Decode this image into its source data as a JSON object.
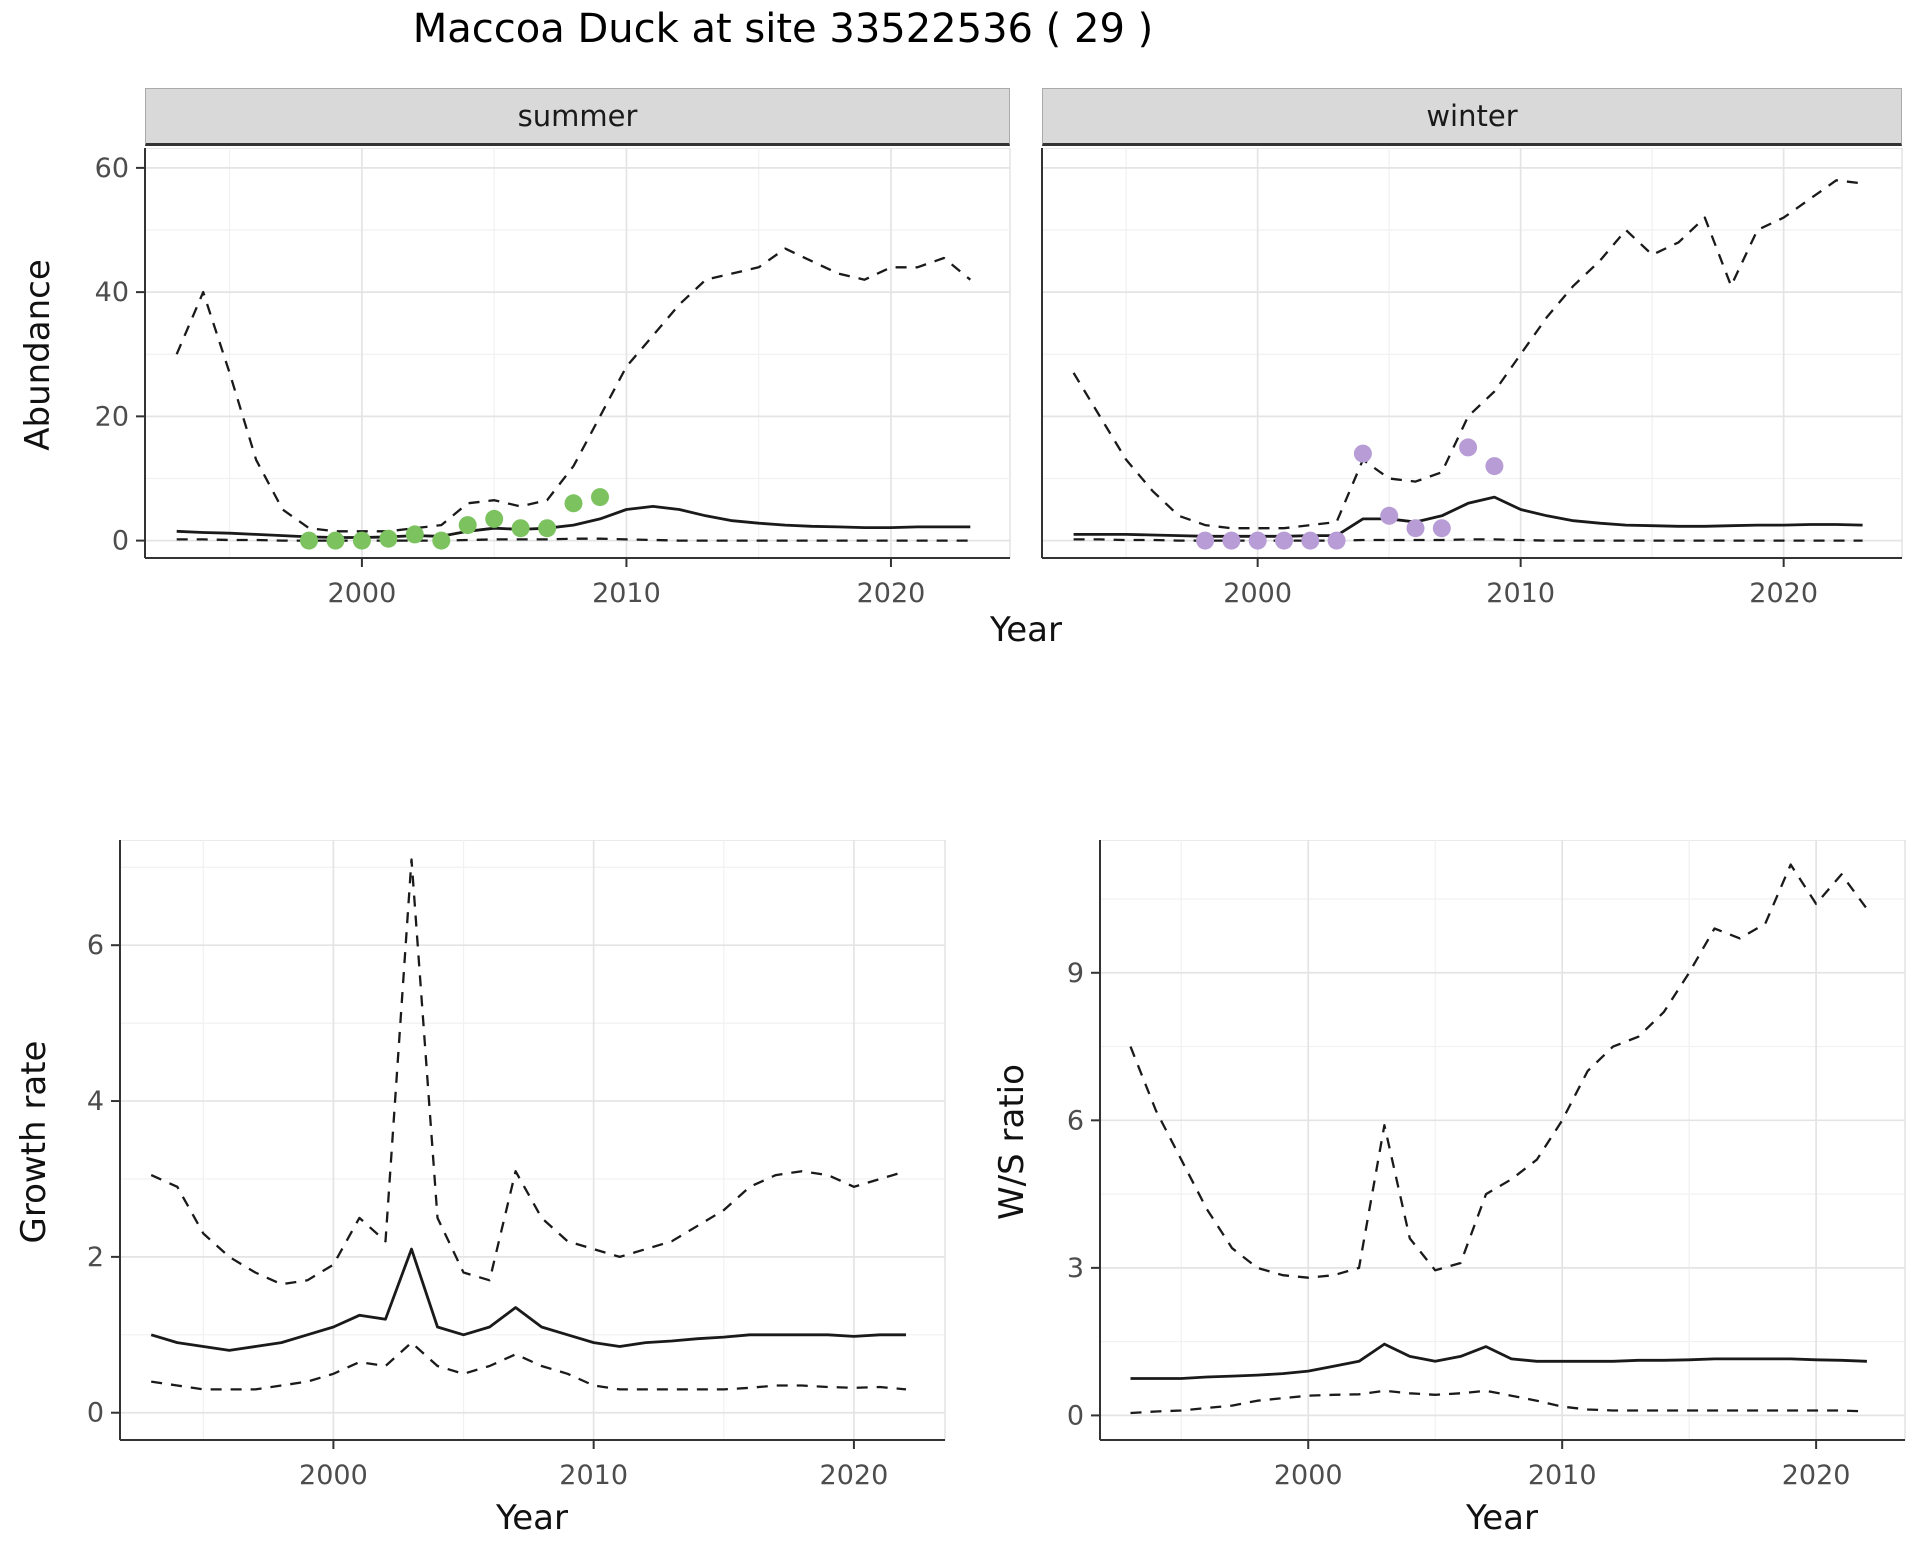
{
  "figure": {
    "title": "Maccoa Duck at site 33522536 ( 29 )"
  },
  "chart_data": [
    {
      "id": "abundance-summer",
      "type": "line",
      "facet_label": "summer",
      "xlabel": "Year",
      "ylabel": "Abundance",
      "xlim": [
        1991.8,
        2024.5
      ],
      "ylim": [
        -2.8,
        63.2
      ],
      "xticks": [
        2000,
        2010,
        2020
      ],
      "yticks": [
        0,
        20,
        40,
        60
      ],
      "grid": true,
      "legend": "none",
      "x": [
        1993,
        1994,
        1995,
        1996,
        1997,
        1998,
        1999,
        2000,
        2001,
        2002,
        2003,
        2004,
        2005,
        2006,
        2007,
        2008,
        2009,
        2010,
        2011,
        2012,
        2013,
        2014,
        2015,
        2016,
        2017,
        2018,
        2019,
        2020,
        2021,
        2022,
        2023
      ],
      "series": [
        {
          "name": "upper-credible-bound",
          "style": "dashed",
          "values": [
            30,
            40,
            27,
            13,
            5,
            2,
            1.5,
            1.5,
            1.5,
            2,
            2.5,
            6,
            6.5,
            5.5,
            6.5,
            12,
            20,
            28,
            33,
            38,
            42,
            43,
            44,
            47,
            45,
            43,
            42,
            44,
            44,
            45.5,
            42
          ]
        },
        {
          "name": "median-estimate",
          "style": "solid",
          "values": [
            1.5,
            1.3,
            1.2,
            1,
            0.8,
            0.6,
            0.5,
            0.5,
            0.6,
            0.8,
            0.7,
            1.5,
            2,
            1.8,
            2,
            2.5,
            3.5,
            5,
            5.5,
            5,
            4,
            3.2,
            2.8,
            2.5,
            2.3,
            2.2,
            2.1,
            2.1,
            2.2,
            2.2,
            2.2
          ]
        },
        {
          "name": "lower-credible-bound",
          "style": "dashed",
          "values": [
            0.2,
            0.2,
            0.1,
            0.1,
            0,
            0,
            0,
            0,
            0,
            0,
            0,
            0.1,
            0.2,
            0.2,
            0.2,
            0.3,
            0.3,
            0.2,
            0.1,
            0,
            0,
            0,
            0,
            0,
            0,
            0,
            0,
            0,
            0,
            0,
            0
          ]
        }
      ],
      "points": {
        "name": "summer-observed-count",
        "color": "#7cc360",
        "x": [
          1998,
          1999,
          2000,
          2001,
          2002,
          2003,
          2004,
          2005,
          2006,
          2007,
          2008,
          2009
        ],
        "y": [
          0,
          0,
          0,
          0.3,
          1,
          0,
          2.5,
          3.5,
          2,
          2,
          6,
          7
        ]
      }
    },
    {
      "id": "abundance-winter",
      "type": "line",
      "facet_label": "winter",
      "xlabel": "Year",
      "ylabel": "Abundance",
      "xlim": [
        1991.8,
        2024.5
      ],
      "ylim": [
        -2.8,
        63.2
      ],
      "xticks": [
        2000,
        2010,
        2020
      ],
      "yticks": [
        0,
        20,
        40,
        60
      ],
      "grid": true,
      "legend": "none",
      "x": [
        1993,
        1994,
        1995,
        1996,
        1997,
        1998,
        1999,
        2000,
        2001,
        2002,
        2003,
        2004,
        2005,
        2006,
        2007,
        2008,
        2009,
        2010,
        2011,
        2012,
        2013,
        2014,
        2015,
        2016,
        2017,
        2018,
        2019,
        2020,
        2021,
        2022,
        2023
      ],
      "series": [
        {
          "name": "upper-credible-bound",
          "style": "dashed",
          "values": [
            27,
            20,
            13,
            8,
            4,
            2.5,
            2,
            2,
            2,
            2.5,
            3,
            13,
            10,
            9.5,
            11,
            20,
            24,
            30,
            36,
            41,
            45,
            50,
            46,
            48,
            52,
            41,
            50,
            52,
            55,
            58,
            57.5
          ]
        },
        {
          "name": "median-estimate",
          "style": "solid",
          "values": [
            1,
            1,
            1,
            0.9,
            0.8,
            0.7,
            0.7,
            0.7,
            0.7,
            0.8,
            0.8,
            3.5,
            3.5,
            3,
            4,
            6,
            7,
            5,
            4,
            3.2,
            2.8,
            2.5,
            2.4,
            2.3,
            2.3,
            2.4,
            2.5,
            2.5,
            2.6,
            2.6,
            2.5
          ]
        },
        {
          "name": "lower-credible-bound",
          "style": "dashed",
          "values": [
            0.2,
            0.2,
            0.1,
            0.1,
            0,
            0,
            0,
            0,
            0,
            0,
            0,
            0.1,
            0.1,
            0.1,
            0.1,
            0.2,
            0.2,
            0.1,
            0,
            0,
            0,
            0,
            0,
            0,
            0,
            0,
            0,
            0,
            0,
            0,
            0
          ]
        }
      ],
      "points": {
        "name": "winter-observed-count",
        "color": "#b79cd6",
        "x": [
          1998,
          1999,
          2000,
          2001,
          2002,
          2003,
          2004,
          2005,
          2006,
          2007,
          2008,
          2009
        ],
        "y": [
          0,
          0,
          0,
          0,
          0,
          0,
          14,
          4,
          2,
          2,
          15,
          12
        ]
      }
    },
    {
      "id": "growth-rate",
      "type": "line",
      "facet_label": "",
      "xlabel": "Year",
      "ylabel": "Growth rate",
      "xlim": [
        1991.8,
        2023.5
      ],
      "ylim": [
        -0.35,
        7.35
      ],
      "xticks": [
        2000,
        2010,
        2020
      ],
      "yticks": [
        0,
        2,
        4,
        6
      ],
      "grid": true,
      "legend": "none",
      "x": [
        1993,
        1994,
        1995,
        1996,
        1997,
        1998,
        1999,
        2000,
        2001,
        2002,
        2003,
        2004,
        2005,
        2006,
        2007,
        2008,
        2009,
        2010,
        2011,
        2012,
        2013,
        2014,
        2015,
        2016,
        2017,
        2018,
        2019,
        2020,
        2021,
        2022
      ],
      "series": [
        {
          "name": "upper-credible-bound",
          "style": "dashed",
          "values": [
            3.05,
            2.9,
            2.3,
            2,
            1.8,
            1.65,
            1.7,
            1.9,
            2.5,
            2.2,
            7.1,
            2.5,
            1.8,
            1.7,
            3.1,
            2.5,
            2.2,
            2.1,
            2,
            2.1,
            2.2,
            2.4,
            2.6,
            2.9,
            3.05,
            3.1,
            3.05,
            2.9,
            3,
            3.1
          ]
        },
        {
          "name": "median-estimate",
          "style": "solid",
          "values": [
            1,
            0.9,
            0.85,
            0.8,
            0.85,
            0.9,
            1,
            1.1,
            1.25,
            1.2,
            2.1,
            1.1,
            1,
            1.1,
            1.35,
            1.1,
            1,
            0.9,
            0.85,
            0.9,
            0.92,
            0.95,
            0.97,
            1,
            1,
            1,
            1,
            0.98,
            1,
            1
          ]
        },
        {
          "name": "lower-credible-bound",
          "style": "dashed",
          "values": [
            0.4,
            0.35,
            0.3,
            0.3,
            0.3,
            0.35,
            0.4,
            0.5,
            0.65,
            0.6,
            0.9,
            0.6,
            0.5,
            0.6,
            0.75,
            0.6,
            0.5,
            0.35,
            0.3,
            0.3,
            0.3,
            0.3,
            0.3,
            0.32,
            0.35,
            0.35,
            0.33,
            0.32,
            0.33,
            0.3
          ]
        }
      ],
      "points": null
    },
    {
      "id": "ws-ratio",
      "type": "line",
      "facet_label": "",
      "xlabel": "Year",
      "ylabel": "W/S ratio",
      "xlim": [
        1991.8,
        2023.5
      ],
      "ylim": [
        -0.5,
        11.7
      ],
      "xticks": [
        2000,
        2010,
        2020
      ],
      "yticks": [
        0,
        3,
        6,
        9
      ],
      "grid": true,
      "legend": "none",
      "x": [
        1993,
        1994,
        1995,
        1996,
        1997,
        1998,
        1999,
        2000,
        2001,
        2002,
        2003,
        2004,
        2005,
        2006,
        2007,
        2008,
        2009,
        2010,
        2011,
        2012,
        2013,
        2014,
        2015,
        2016,
        2017,
        2018,
        2019,
        2020,
        2021,
        2022
      ],
      "series": [
        {
          "name": "upper-credible-bound",
          "style": "dashed",
          "values": [
            7.5,
            6.2,
            5.2,
            4.2,
            3.4,
            3,
            2.85,
            2.8,
            2.85,
            3,
            5.9,
            3.6,
            2.95,
            3.1,
            4.5,
            4.8,
            5.2,
            6,
            7,
            7.5,
            7.7,
            8.2,
            9,
            9.9,
            9.7,
            10,
            11.2,
            10.4,
            11,
            10.3
          ]
        },
        {
          "name": "median-estimate",
          "style": "solid",
          "values": [
            0.75,
            0.75,
            0.75,
            0.78,
            0.8,
            0.82,
            0.85,
            0.9,
            1,
            1.1,
            1.45,
            1.2,
            1.1,
            1.2,
            1.4,
            1.15,
            1.1,
            1.1,
            1.1,
            1.1,
            1.12,
            1.12,
            1.13,
            1.15,
            1.15,
            1.15,
            1.15,
            1.13,
            1.12,
            1.1
          ]
        },
        {
          "name": "lower-credible-bound",
          "style": "dashed",
          "values": [
            0.05,
            0.08,
            0.1,
            0.15,
            0.2,
            0.3,
            0.35,
            0.4,
            0.42,
            0.43,
            0.5,
            0.45,
            0.42,
            0.45,
            0.5,
            0.4,
            0.3,
            0.18,
            0.12,
            0.1,
            0.1,
            0.1,
            0.1,
            0.1,
            0.1,
            0.1,
            0.1,
            0.1,
            0.1,
            0.08
          ]
        }
      ],
      "points": null
    }
  ],
  "style": {
    "line_color": "#1a1a1a",
    "summer_point_color": "#7cc360",
    "winter_point_color": "#b79cd6",
    "strip_background": "#d9d9d9",
    "major_grid_color": "#e4e4e4",
    "minor_grid_color": "#f1f1f1",
    "axis_text_color": "#4d4d4d"
  }
}
